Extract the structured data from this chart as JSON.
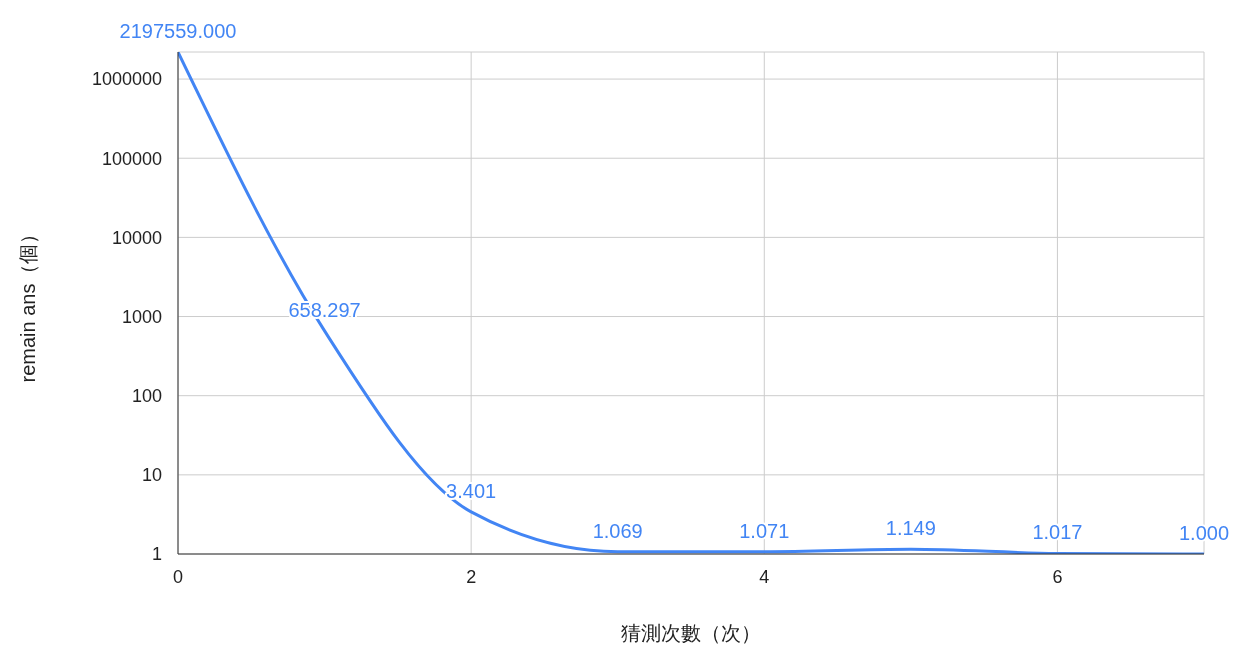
{
  "chart_data": {
    "type": "line",
    "xlabel": "猜測次數（次）",
    "ylabel": "remain ans（個）",
    "x": [
      0,
      1,
      2,
      3,
      4,
      5,
      6,
      7
    ],
    "series": [
      {
        "color": "#4285f4",
        "values": [
          2197559,
          658.297,
          3.401,
          1.069,
          1.071,
          1.149,
          1.017,
          1.0
        ],
        "value_labels": [
          "2197559.000",
          "658.297",
          "3.401",
          "1.069",
          "1.071",
          "1.149",
          "1.017",
          "1.000"
        ]
      }
    ],
    "xlim": [
      0,
      7
    ],
    "xticks": [
      0,
      2,
      4,
      6
    ],
    "ylim": [
      1,
      2197559
    ],
    "yticks": [
      1,
      10,
      100,
      1000,
      10000,
      100000,
      1000000
    ],
    "log": "y",
    "grid": true,
    "legend": false,
    "marker": "none",
    "line_style": "solid"
  }
}
